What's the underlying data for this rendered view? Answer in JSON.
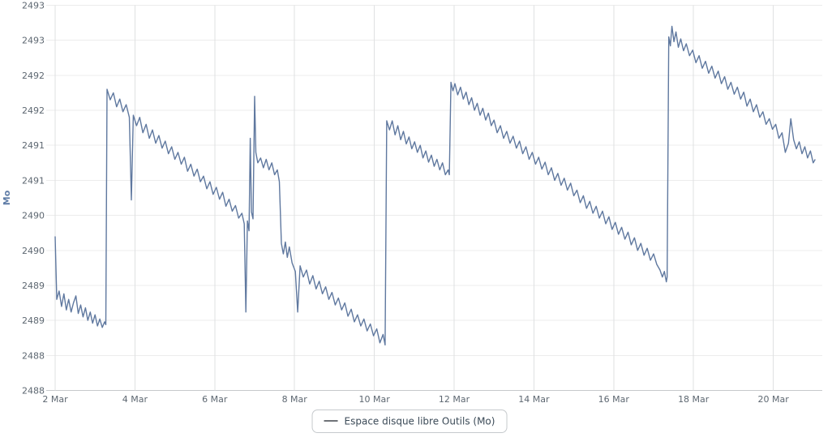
{
  "chart": {
    "colors": {
      "line": "#5f789f",
      "grid_h": "#ececec",
      "grid_v": "#dfe1e2",
      "axis_line": "#c6c9cb",
      "tick_text": "#5d6771",
      "y_title": "#5d7ba6",
      "legend_border": "#c6cacd",
      "legend_text": "#3b4a57",
      "legend_swatch": "#6f7378"
    }
  },
  "chart_data": {
    "type": "line",
    "title": "",
    "xlabel": "",
    "ylabel": "Mo",
    "grid": true,
    "legend_position": "bottom-center",
    "ylim": [
      2488,
      2493.5
    ],
    "xlim_days": [
      2,
      21.25
    ],
    "y_ticks": [
      {
        "value": 2493.5,
        "label": "2493"
      },
      {
        "value": 2493.0,
        "label": "2493"
      },
      {
        "value": 2492.5,
        "label": "2492"
      },
      {
        "value": 2492.0,
        "label": "2492"
      },
      {
        "value": 2491.5,
        "label": "2491"
      },
      {
        "value": 2491.0,
        "label": "2491"
      },
      {
        "value": 2490.5,
        "label": "2490"
      },
      {
        "value": 2490.0,
        "label": "2490"
      },
      {
        "value": 2489.5,
        "label": "2489"
      },
      {
        "value": 2489.0,
        "label": "2489"
      },
      {
        "value": 2488.5,
        "label": "2488"
      },
      {
        "value": 2488.0,
        "label": "2488"
      }
    ],
    "x_ticks": [
      {
        "day": 2,
        "label": "2 Mar"
      },
      {
        "day": 4,
        "label": "4 Mar"
      },
      {
        "day": 6,
        "label": "6 Mar"
      },
      {
        "day": 8,
        "label": "8 Mar"
      },
      {
        "day": 10,
        "label": "10 Mar"
      },
      {
        "day": 12,
        "label": "12 Mar"
      },
      {
        "day": 14,
        "label": "14 Mar"
      },
      {
        "day": 16,
        "label": "16 Mar"
      },
      {
        "day": 18,
        "label": "18 Mar"
      },
      {
        "day": 20,
        "label": "20 Mar"
      }
    ],
    "series": [
      {
        "name": "Espace disque libre Outils (Mo)",
        "unit": "Mo",
        "color": "#5f789f",
        "points": [
          [
            2.0,
            2490.2
          ],
          [
            2.04,
            2489.3
          ],
          [
            2.1,
            2489.42
          ],
          [
            2.16,
            2489.2
          ],
          [
            2.22,
            2489.38
          ],
          [
            2.28,
            2489.15
          ],
          [
            2.34,
            2489.3
          ],
          [
            2.4,
            2489.12
          ],
          [
            2.46,
            2489.25
          ],
          [
            2.52,
            2489.35
          ],
          [
            2.58,
            2489.1
          ],
          [
            2.64,
            2489.22
          ],
          [
            2.7,
            2489.05
          ],
          [
            2.76,
            2489.18
          ],
          [
            2.82,
            2489.0
          ],
          [
            2.88,
            2489.12
          ],
          [
            2.94,
            2488.96
          ],
          [
            3.0,
            2489.08
          ],
          [
            3.06,
            2488.92
          ],
          [
            3.12,
            2489.02
          ],
          [
            3.18,
            2488.9
          ],
          [
            3.24,
            2488.98
          ],
          [
            3.27,
            2488.94
          ],
          [
            3.3,
            2492.3
          ],
          [
            3.38,
            2492.15
          ],
          [
            3.46,
            2492.25
          ],
          [
            3.54,
            2492.05
          ],
          [
            3.62,
            2492.16
          ],
          [
            3.7,
            2491.98
          ],
          [
            3.78,
            2492.08
          ],
          [
            3.86,
            2491.9
          ],
          [
            3.91,
            2490.72
          ],
          [
            3.96,
            2491.93
          ],
          [
            4.04,
            2491.78
          ],
          [
            4.12,
            2491.9
          ],
          [
            4.2,
            2491.68
          ],
          [
            4.28,
            2491.8
          ],
          [
            4.36,
            2491.6
          ],
          [
            4.44,
            2491.72
          ],
          [
            4.52,
            2491.53
          ],
          [
            4.6,
            2491.64
          ],
          [
            4.68,
            2491.46
          ],
          [
            4.76,
            2491.56
          ],
          [
            4.84,
            2491.38
          ],
          [
            4.92,
            2491.48
          ],
          [
            5.0,
            2491.3
          ],
          [
            5.08,
            2491.4
          ],
          [
            5.16,
            2491.23
          ],
          [
            5.24,
            2491.33
          ],
          [
            5.32,
            2491.13
          ],
          [
            5.4,
            2491.23
          ],
          [
            5.48,
            2491.06
          ],
          [
            5.56,
            2491.16
          ],
          [
            5.64,
            2490.98
          ],
          [
            5.72,
            2491.06
          ],
          [
            5.8,
            2490.88
          ],
          [
            5.88,
            2490.98
          ],
          [
            5.96,
            2490.8
          ],
          [
            6.04,
            2490.9
          ],
          [
            6.12,
            2490.73
          ],
          [
            6.2,
            2490.83
          ],
          [
            6.28,
            2490.63
          ],
          [
            6.36,
            2490.73
          ],
          [
            6.44,
            2490.56
          ],
          [
            6.52,
            2490.64
          ],
          [
            6.6,
            2490.46
          ],
          [
            6.68,
            2490.53
          ],
          [
            6.74,
            2490.38
          ],
          [
            6.78,
            2489.12
          ],
          [
            6.82,
            2490.42
          ],
          [
            6.86,
            2490.28
          ],
          [
            6.89,
            2491.6
          ],
          [
            6.92,
            2490.55
          ],
          [
            6.96,
            2490.45
          ],
          [
            7.0,
            2492.2
          ],
          [
            7.03,
            2491.4
          ],
          [
            7.08,
            2491.25
          ],
          [
            7.15,
            2491.32
          ],
          [
            7.22,
            2491.18
          ],
          [
            7.29,
            2491.3
          ],
          [
            7.36,
            2491.15
          ],
          [
            7.43,
            2491.25
          ],
          [
            7.5,
            2491.08
          ],
          [
            7.57,
            2491.15
          ],
          [
            7.62,
            2490.98
          ],
          [
            7.67,
            2490.1
          ],
          [
            7.72,
            2489.95
          ],
          [
            7.77,
            2490.12
          ],
          [
            7.82,
            2489.9
          ],
          [
            7.87,
            2490.05
          ],
          [
            7.94,
            2489.82
          ],
          [
            8.02,
            2489.7
          ],
          [
            8.08,
            2489.12
          ],
          [
            8.14,
            2489.78
          ],
          [
            8.22,
            2489.62
          ],
          [
            8.3,
            2489.72
          ],
          [
            8.38,
            2489.52
          ],
          [
            8.46,
            2489.64
          ],
          [
            8.54,
            2489.45
          ],
          [
            8.62,
            2489.56
          ],
          [
            8.7,
            2489.38
          ],
          [
            8.78,
            2489.48
          ],
          [
            8.86,
            2489.3
          ],
          [
            8.94,
            2489.4
          ],
          [
            9.02,
            2489.22
          ],
          [
            9.1,
            2489.32
          ],
          [
            9.18,
            2489.15
          ],
          [
            9.26,
            2489.25
          ],
          [
            9.34,
            2489.06
          ],
          [
            9.42,
            2489.16
          ],
          [
            9.5,
            2488.98
          ],
          [
            9.58,
            2489.08
          ],
          [
            9.66,
            2488.92
          ],
          [
            9.74,
            2489.02
          ],
          [
            9.82,
            2488.85
          ],
          [
            9.9,
            2488.95
          ],
          [
            9.98,
            2488.78
          ],
          [
            10.06,
            2488.88
          ],
          [
            10.14,
            2488.68
          ],
          [
            10.22,
            2488.8
          ],
          [
            10.27,
            2488.65
          ],
          [
            10.31,
            2491.85
          ],
          [
            10.38,
            2491.72
          ],
          [
            10.45,
            2491.85
          ],
          [
            10.52,
            2491.65
          ],
          [
            10.59,
            2491.78
          ],
          [
            10.66,
            2491.58
          ],
          [
            10.73,
            2491.7
          ],
          [
            10.8,
            2491.52
          ],
          [
            10.87,
            2491.62
          ],
          [
            10.94,
            2491.45
          ],
          [
            11.01,
            2491.55
          ],
          [
            11.08,
            2491.4
          ],
          [
            11.15,
            2491.5
          ],
          [
            11.22,
            2491.32
          ],
          [
            11.29,
            2491.42
          ],
          [
            11.36,
            2491.26
          ],
          [
            11.43,
            2491.36
          ],
          [
            11.5,
            2491.2
          ],
          [
            11.57,
            2491.3
          ],
          [
            11.64,
            2491.15
          ],
          [
            11.71,
            2491.25
          ],
          [
            11.78,
            2491.08
          ],
          [
            11.85,
            2491.15
          ],
          [
            11.88,
            2491.08
          ],
          [
            11.92,
            2492.4
          ],
          [
            11.97,
            2492.28
          ],
          [
            12.02,
            2492.38
          ],
          [
            12.09,
            2492.22
          ],
          [
            12.16,
            2492.33
          ],
          [
            12.23,
            2492.16
          ],
          [
            12.3,
            2492.26
          ],
          [
            12.37,
            2492.08
          ],
          [
            12.44,
            2492.18
          ],
          [
            12.51,
            2492.0
          ],
          [
            12.58,
            2492.1
          ],
          [
            12.65,
            2491.93
          ],
          [
            12.72,
            2492.03
          ],
          [
            12.79,
            2491.86
          ],
          [
            12.86,
            2491.96
          ],
          [
            12.93,
            2491.78
          ],
          [
            13.0,
            2491.86
          ],
          [
            13.08,
            2491.68
          ],
          [
            13.16,
            2491.78
          ],
          [
            13.24,
            2491.6
          ],
          [
            13.32,
            2491.7
          ],
          [
            13.4,
            2491.53
          ],
          [
            13.48,
            2491.63
          ],
          [
            13.56,
            2491.46
          ],
          [
            13.64,
            2491.56
          ],
          [
            13.72,
            2491.38
          ],
          [
            13.8,
            2491.48
          ],
          [
            13.88,
            2491.3
          ],
          [
            13.96,
            2491.4
          ],
          [
            14.04,
            2491.23
          ],
          [
            14.12,
            2491.33
          ],
          [
            14.2,
            2491.16
          ],
          [
            14.28,
            2491.26
          ],
          [
            14.36,
            2491.08
          ],
          [
            14.44,
            2491.18
          ],
          [
            14.52,
            2491.0
          ],
          [
            14.6,
            2491.1
          ],
          [
            14.68,
            2490.93
          ],
          [
            14.76,
            2491.03
          ],
          [
            14.84,
            2490.86
          ],
          [
            14.92,
            2490.96
          ],
          [
            15.0,
            2490.78
          ],
          [
            15.08,
            2490.86
          ],
          [
            15.16,
            2490.68
          ],
          [
            15.24,
            2490.78
          ],
          [
            15.32,
            2490.6
          ],
          [
            15.4,
            2490.7
          ],
          [
            15.48,
            2490.53
          ],
          [
            15.56,
            2490.63
          ],
          [
            15.64,
            2490.46
          ],
          [
            15.72,
            2490.56
          ],
          [
            15.8,
            2490.38
          ],
          [
            15.88,
            2490.48
          ],
          [
            15.96,
            2490.3
          ],
          [
            16.04,
            2490.4
          ],
          [
            16.12,
            2490.23
          ],
          [
            16.2,
            2490.33
          ],
          [
            16.28,
            2490.16
          ],
          [
            16.36,
            2490.26
          ],
          [
            16.44,
            2490.08
          ],
          [
            16.52,
            2490.18
          ],
          [
            16.6,
            2490.0
          ],
          [
            16.68,
            2490.1
          ],
          [
            16.76,
            2489.93
          ],
          [
            16.84,
            2490.03
          ],
          [
            16.92,
            2489.86
          ],
          [
            17.0,
            2489.95
          ],
          [
            17.08,
            2489.8
          ],
          [
            17.16,
            2489.72
          ],
          [
            17.22,
            2489.62
          ],
          [
            17.27,
            2489.7
          ],
          [
            17.32,
            2489.55
          ],
          [
            17.34,
            2489.62
          ],
          [
            17.38,
            2493.05
          ],
          [
            17.42,
            2492.92
          ],
          [
            17.46,
            2493.2
          ],
          [
            17.51,
            2492.98
          ],
          [
            17.56,
            2493.12
          ],
          [
            17.62,
            2492.9
          ],
          [
            17.68,
            2493.02
          ],
          [
            17.75,
            2492.85
          ],
          [
            17.82,
            2492.95
          ],
          [
            17.9,
            2492.78
          ],
          [
            17.98,
            2492.86
          ],
          [
            18.06,
            2492.68
          ],
          [
            18.14,
            2492.78
          ],
          [
            18.22,
            2492.6
          ],
          [
            18.3,
            2492.7
          ],
          [
            18.38,
            2492.53
          ],
          [
            18.46,
            2492.63
          ],
          [
            18.54,
            2492.46
          ],
          [
            18.62,
            2492.56
          ],
          [
            18.7,
            2492.38
          ],
          [
            18.78,
            2492.48
          ],
          [
            18.86,
            2492.3
          ],
          [
            18.94,
            2492.4
          ],
          [
            19.02,
            2492.23
          ],
          [
            19.1,
            2492.33
          ],
          [
            19.18,
            2492.16
          ],
          [
            19.26,
            2492.26
          ],
          [
            19.34,
            2492.06
          ],
          [
            19.42,
            2492.16
          ],
          [
            19.5,
            2491.98
          ],
          [
            19.58,
            2492.08
          ],
          [
            19.66,
            2491.9
          ],
          [
            19.74,
            2491.98
          ],
          [
            19.82,
            2491.8
          ],
          [
            19.9,
            2491.88
          ],
          [
            19.98,
            2491.73
          ],
          [
            20.06,
            2491.8
          ],
          [
            20.14,
            2491.6
          ],
          [
            20.22,
            2491.68
          ],
          [
            20.3,
            2491.4
          ],
          [
            20.38,
            2491.53
          ],
          [
            20.44,
            2491.88
          ],
          [
            20.51,
            2491.58
          ],
          [
            20.58,
            2491.45
          ],
          [
            20.65,
            2491.55
          ],
          [
            20.72,
            2491.38
          ],
          [
            20.79,
            2491.48
          ],
          [
            20.86,
            2491.32
          ],
          [
            20.93,
            2491.42
          ],
          [
            21.0,
            2491.25
          ],
          [
            21.05,
            2491.3
          ]
        ]
      }
    ]
  }
}
